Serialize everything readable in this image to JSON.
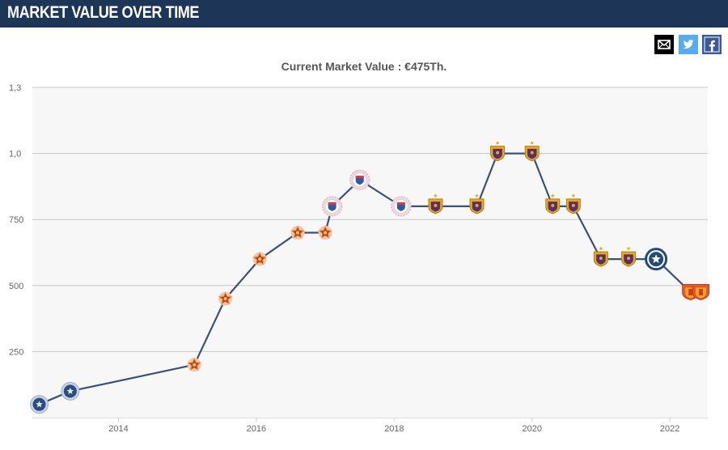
{
  "header": {
    "title": "MARKET VALUE OVER TIME"
  },
  "share": [
    {
      "icon": "email-icon",
      "color": "#000000"
    },
    {
      "icon": "twitter-icon",
      "color": "#55acee"
    },
    {
      "icon": "facebook-icon",
      "color": "#3b5998"
    }
  ],
  "colors": {
    "header_bg": "#1d3557",
    "line": "#3a5374",
    "plot_bg": "#f7f7f7",
    "grid": "#c8c8c8"
  },
  "chart_data": {
    "type": "line",
    "title": "Current Market Value : €475Th.",
    "xlabel": "",
    "ylabel": "",
    "x_tick_labels": [
      "2014",
      "2016",
      "2018",
      "2020",
      "2022"
    ],
    "y_tick_labels": [
      "250",
      "500",
      "750",
      "1,0",
      "1,3"
    ],
    "xlim": [
      2012.75,
      2022.55
    ],
    "ylim": [
      0,
      1.25
    ],
    "grid": true,
    "series": [
      {
        "points": [
          {
            "x": 2012.85,
            "y": 0.05,
            "club": "blue-crest"
          },
          {
            "x": 2013.3,
            "y": 0.1,
            "club": "blue-crest"
          },
          {
            "x": 2015.1,
            "y": 0.2,
            "club": "red-star"
          },
          {
            "x": 2015.55,
            "y": 0.45,
            "club": "red-star"
          },
          {
            "x": 2016.05,
            "y": 0.6,
            "club": "red-star"
          },
          {
            "x": 2016.6,
            "y": 0.7,
            "club": "red-star"
          },
          {
            "x": 2017.0,
            "y": 0.7,
            "club": "red-star"
          },
          {
            "x": 2017.1,
            "y": 0.8,
            "club": "eagle-crest"
          },
          {
            "x": 2017.5,
            "y": 0.9,
            "club": "eagle-crest"
          },
          {
            "x": 2018.1,
            "y": 0.8,
            "club": "eagle-crest"
          },
          {
            "x": 2018.6,
            "y": 0.8,
            "club": "purple-gold"
          },
          {
            "x": 2019.2,
            "y": 0.8,
            "club": "purple-gold"
          },
          {
            "x": 2019.5,
            "y": 1.0,
            "club": "purple-gold"
          },
          {
            "x": 2020.0,
            "y": 1.0,
            "club": "purple-gold"
          },
          {
            "x": 2020.3,
            "y": 0.8,
            "club": "purple-gold"
          },
          {
            "x": 2020.6,
            "y": 0.8,
            "club": "purple-gold"
          },
          {
            "x": 2021.0,
            "y": 0.6,
            "club": "purple-gold"
          },
          {
            "x": 2021.4,
            "y": 0.6,
            "club": "purple-gold"
          },
          {
            "x": 2021.8,
            "y": 0.6,
            "club": "star-ring"
          },
          {
            "x": 2022.3,
            "y": 0.475,
            "club": "orange-crest"
          },
          {
            "x": 2022.45,
            "y": 0.475,
            "club": "orange-crest"
          }
        ]
      }
    ]
  }
}
